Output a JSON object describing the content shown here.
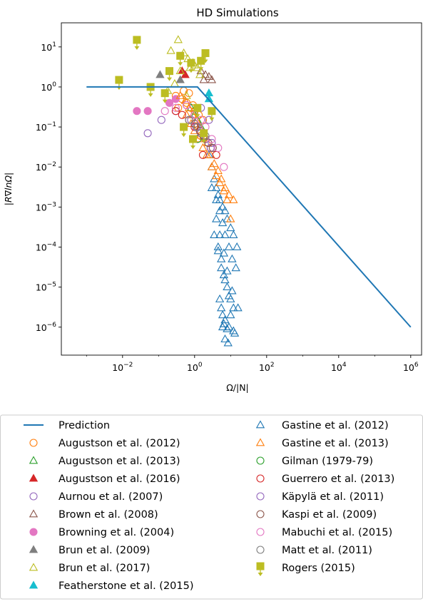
{
  "chart_data": {
    "type": "scatter",
    "title": "HD Simulations",
    "xlabel": "Ω/|N|",
    "ylabel": "|R∇lnΩ|",
    "xscale": "log",
    "yscale": "log",
    "xlim": [
      0.0002,
      2000000
    ],
    "ylim": [
      2e-07,
      40
    ],
    "x_ticks": [
      0.01,
      1,
      100,
      10000,
      1000000
    ],
    "x_tick_labels": [
      "10^-2",
      "10^0",
      "10^2",
      "10^4",
      "10^6"
    ],
    "y_ticks": [
      1e-06,
      1e-05,
      0.0001,
      0.001,
      0.01,
      0.1,
      1,
      10
    ],
    "y_tick_labels": [
      "10^-6",
      "10^-5",
      "10^-4",
      "10^-3",
      "10^-2",
      "10^-1",
      "10^0",
      "10^1"
    ],
    "grid": false,
    "legend_position": "below",
    "series": [
      {
        "name": "Prediction",
        "kind": "line",
        "color": "#1f77b4",
        "x": [
          0.001,
          1.2,
          1000000
        ],
        "y": [
          1,
          1,
          1e-06
        ]
      },
      {
        "name": "Augustson et al. (2012)",
        "marker": "circle-open",
        "color": "#ff7f0e",
        "x": [
          0.3,
          0.45,
          0.6,
          0.8,
          1.0,
          1.3,
          1.7,
          0.5,
          0.7,
          0.9,
          1.2,
          0.35,
          1.5,
          2.0
        ],
        "y": [
          0.6,
          0.5,
          0.4,
          0.3,
          0.25,
          0.2,
          0.15,
          0.8,
          0.7,
          0.35,
          0.1,
          0.3,
          0.06,
          0.05
        ]
      },
      {
        "name": "Augustson et al. (2013)",
        "marker": "triangle-open",
        "color": "#2ca02c",
        "x": [
          0.8,
          1.0,
          1.2,
          1.5
        ],
        "y": [
          0.3,
          0.2,
          0.15,
          0.1
        ]
      },
      {
        "name": "Augustson et al. (2016)",
        "marker": "triangle-filled",
        "color": "#d62728",
        "x": [
          0.45,
          0.55
        ],
        "y": [
          2.5,
          2.0
        ]
      },
      {
        "name": "Aurnou et al. (2007)",
        "marker": "circle-open",
        "color": "#9467bd",
        "x": [
          0.05,
          0.12,
          0.3,
          0.6,
          1.0,
          1.5,
          2.5,
          3.0
        ],
        "y": [
          0.07,
          0.15,
          0.25,
          0.35,
          0.2,
          0.3,
          0.15,
          0.04
        ]
      },
      {
        "name": "Brown et al. (2008)",
        "marker": "triangle-open",
        "color": "#8c564b",
        "x": [
          1.5,
          2.0,
          2.5,
          3.0,
          1.8
        ],
        "y": [
          2.5,
          2.0,
          1.8,
          1.5,
          1.5
        ]
      },
      {
        "name": "Browning et al. (2004)",
        "marker": "circle-filled",
        "color": "#e377c2",
        "x": [
          0.025,
          0.05,
          0.2,
          0.3
        ],
        "y": [
          0.25,
          0.25,
          0.4,
          0.5
        ]
      },
      {
        "name": "Brun et al. (2009)",
        "marker": "triangle-filled",
        "color": "#7f7f7f",
        "x": [
          0.11,
          0.4
        ],
        "y": [
          2.0,
          1.5
        ]
      },
      {
        "name": "Brun et al. (2017)",
        "marker": "triangle-open",
        "color": "#bcbd22",
        "x": [
          0.22,
          0.35,
          0.5,
          0.65,
          0.75,
          0.9,
          1.0,
          1.2,
          1.4,
          0.4,
          0.28,
          0.18,
          0.6
        ],
        "y": [
          8.0,
          15.0,
          7.0,
          5.0,
          3.0,
          4.0,
          3.5,
          3.0,
          2.0,
          2.5,
          1.2,
          0.8,
          0.6
        ]
      },
      {
        "name": "Featherstone et al. (2015)",
        "marker": "triangle-filled",
        "color": "#17becf",
        "x": [
          2.5,
          2.5
        ],
        "y": [
          0.7,
          0.5
        ]
      },
      {
        "name": "Gastine et al. (2012)",
        "marker": "triangle-open",
        "color": "#1f77b4",
        "x": [
          2.5,
          3.0,
          3.5,
          4.0,
          4.5,
          5.0,
          6.0,
          7.0,
          8.0,
          10.0,
          12.0,
          15.0,
          3.0,
          4.0,
          5.0,
          6.0,
          7.0,
          9.0,
          11.0,
          14.0,
          4.5,
          5.5,
          6.5,
          8.0,
          10.0,
          3.5,
          4.5,
          5.5,
          7.0,
          9.0,
          12.0,
          4.0,
          5.0,
          6.5,
          8.0,
          11.0,
          16.0,
          5.0,
          6.0,
          7.0,
          9.0,
          12.0,
          5.5,
          6.5,
          8.0,
          10.0,
          13.0,
          6.0,
          7.0,
          8.5
        ],
        "y": [
          0.02,
          0.01,
          0.005,
          0.003,
          0.002,
          0.0015,
          0.001,
          0.0008,
          0.0005,
          0.0003,
          0.0002,
          0.0001,
          0.003,
          0.0015,
          0.0008,
          0.0004,
          0.0002,
          0.0001,
          5e-05,
          3e-05,
          0.0001,
          5e-05,
          2e-05,
          1e-05,
          5e-06,
          0.0002,
          8e-05,
          3e-05,
          1.5e-05,
          6e-06,
          3e-06,
          0.0005,
          0.0002,
          7e-05,
          2.5e-05,
          8e-06,
          3e-06,
          5e-06,
          2e-06,
          1.5e-06,
          1e-06,
          8e-07,
          3e-06,
          1.2e-06,
          9e-07,
          2e-06,
          7e-07,
          1e-06,
          5e-07,
          4e-07
        ]
      },
      {
        "name": "Gastine et al. (2013)",
        "marker": "triangle-open",
        "color": "#ff7f0e",
        "x": [
          0.4,
          0.55,
          0.7,
          0.9,
          1.1,
          1.4,
          1.8,
          2.3,
          2.8,
          3.5,
          4.5,
          5.5,
          7.0,
          9.0,
          12.0,
          0.6,
          0.8,
          1.0,
          1.3,
          1.7,
          2.2,
          3.0,
          4.0,
          5.0,
          6.5,
          8.0,
          10.0
        ],
        "y": [
          0.6,
          0.45,
          0.3,
          0.2,
          0.15,
          0.1,
          0.06,
          0.04,
          0.02,
          0.012,
          0.008,
          0.005,
          0.003,
          0.002,
          0.0015,
          0.2,
          0.12,
          0.08,
          0.05,
          0.03,
          0.02,
          0.01,
          0.006,
          0.004,
          0.0025,
          0.0015,
          0.0005
        ]
      },
      {
        "name": "Gilman (1979-79)",
        "marker": "circle-open",
        "color": "#2ca02c",
        "x": [
          1.2
        ],
        "y": [
          0.05
        ]
      },
      {
        "name": "Guerrero et al. (2013)",
        "marker": "circle-open",
        "color": "#d62728",
        "x": [
          0.3,
          0.45,
          0.7,
          1.0,
          1.4,
          2.0,
          2.8,
          4.0,
          1.7
        ],
        "y": [
          0.25,
          0.2,
          0.15,
          0.1,
          0.08,
          0.05,
          0.03,
          0.02,
          0.02
        ]
      },
      {
        "name": "Käpylä et al. (2011)",
        "marker": "circle-open",
        "color": "#9467bd",
        "x": [
          0.8,
          1.1,
          1.5,
          2.0,
          2.8
        ],
        "y": [
          0.15,
          0.1,
          0.07,
          0.05,
          0.03
        ]
      },
      {
        "name": "Kaspi et al. (2009)",
        "marker": "circle-open",
        "color": "#8c564b",
        "x": [
          1.0,
          1.4,
          1.8,
          2.4,
          3.2
        ],
        "y": [
          0.12,
          0.08,
          0.06,
          0.04,
          0.03
        ]
      },
      {
        "name": "Mabuchi et al. (2015)",
        "marker": "circle-open",
        "color": "#e377c2",
        "x": [
          0.15,
          0.3,
          0.6,
          1.0,
          1.5,
          2.0,
          3.0,
          4.5,
          6.5
        ],
        "y": [
          0.25,
          0.3,
          0.35,
          0.2,
          0.15,
          0.1,
          0.05,
          0.03,
          0.01
        ]
      },
      {
        "name": "Matt et al. (2011)",
        "marker": "circle-open",
        "color": "#7f7f7f",
        "x": [
          0.7,
          1.2,
          2.0
        ],
        "y": [
          0.15,
          0.1,
          0.06
        ]
      },
      {
        "name": "Rogers (2015)",
        "marker": "square-errorbar-down",
        "color": "#bcbd22",
        "x": [
          0.008,
          0.025,
          0.06,
          0.2,
          0.4,
          0.8,
          1.5,
          2.0,
          3.0,
          0.15,
          0.5,
          1.2,
          0.9,
          1.8
        ],
        "y": [
          1.5,
          15.0,
          1.0,
          2.5,
          6.0,
          4.0,
          4.5,
          7.0,
          0.25,
          0.7,
          0.1,
          0.3,
          0.05,
          0.07
        ]
      }
    ]
  }
}
